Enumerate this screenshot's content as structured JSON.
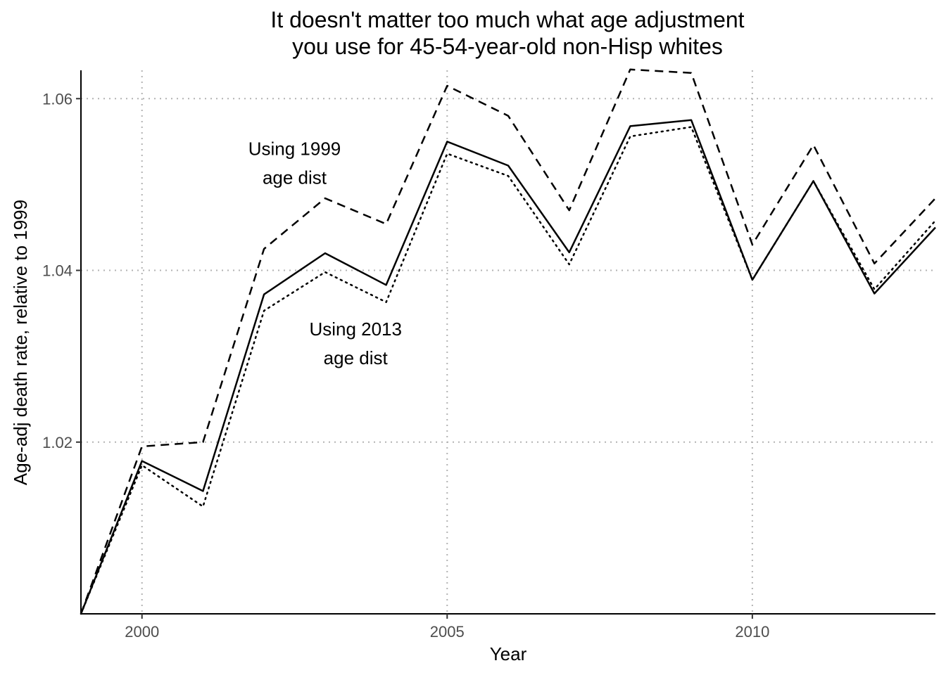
{
  "chart_data": {
    "type": "line",
    "title": "It doesn't matter too much what age adjustment you use for 45-54-year-old non-Hisp whites",
    "title_lines": [
      "It doesn't matter too much what age adjustment",
      "you use for 45-54-year-old non-Hisp whites"
    ],
    "xlabel": "Year",
    "ylabel": "Age-adj death rate, relative to 1999",
    "xlim": [
      1999,
      2013
    ],
    "ylim": [
      1.0,
      1.0633
    ],
    "x_ticks": [
      2000,
      2005,
      2010
    ],
    "x_tick_labels": [
      "2000",
      "2005",
      "2010"
    ],
    "y_ticks": [
      1.02,
      1.04,
      1.06
    ],
    "y_tick_labels": [
      "1.02",
      "1.04",
      "1.06"
    ],
    "grid": "on",
    "x": [
      1999,
      2000,
      2001,
      2002,
      2003,
      2004,
      2005,
      2006,
      2007,
      2008,
      2009,
      2010,
      2011,
      2012,
      2013
    ],
    "series": [
      {
        "style": "solid",
        "color": "#000000",
        "values": [
          1.0,
          1.0178,
          1.0143,
          1.0372,
          1.042,
          1.0383,
          1.055,
          1.0522,
          1.0421,
          1.0568,
          1.0575,
          1.0389,
          1.0504,
          1.0373,
          1.045
        ]
      },
      {
        "name": "Using 1999 age dist",
        "style": "dashed",
        "color": "#000000",
        "values": [
          1.0,
          1.0195,
          1.02,
          1.0425,
          1.0484,
          1.0454,
          1.0615,
          1.058,
          1.047,
          1.0634,
          1.063,
          1.043,
          1.0546,
          1.0408,
          1.0484
        ]
      },
      {
        "name": "Using 2013 age dist",
        "style": "dotted",
        "color": "#000000",
        "values": [
          1.0,
          1.0173,
          1.0125,
          1.0353,
          1.0398,
          1.0363,
          1.0536,
          1.051,
          1.0407,
          1.0556,
          1.0567,
          1.0389,
          1.0504,
          1.0378,
          1.0458
        ]
      }
    ],
    "annotations": [
      {
        "lines": [
          "Using 1999",
          "age dist"
        ],
        "x": 2002.5,
        "y": 1.0525
      },
      {
        "lines": [
          "Using 2013",
          "age dist"
        ],
        "x": 2003.5,
        "y": 1.0315
      }
    ]
  }
}
